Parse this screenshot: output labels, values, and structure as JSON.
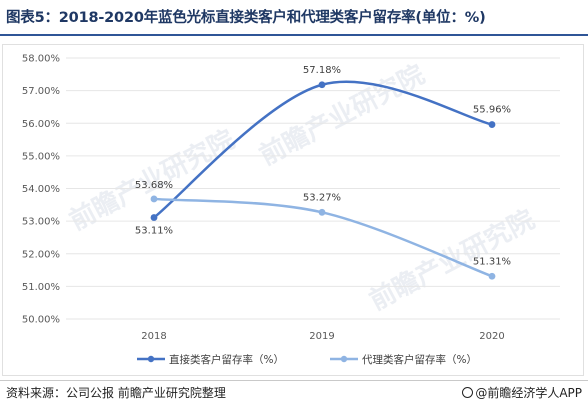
{
  "title": "图表5：2018-2020年蓝色光标直接类客户和代理类客户留存率(单位：%)",
  "chart_data": {
    "type": "line",
    "title": "图表5：2018-2020年蓝色光标直接类客户和代理类客户留存率(单位：%)",
    "xlabel": "",
    "ylabel": "",
    "categories": [
      "2018",
      "2019",
      "2020"
    ],
    "yticks": [
      "50.00%",
      "51.00%",
      "52.00%",
      "53.00%",
      "54.00%",
      "55.00%",
      "56.00%",
      "57.00%",
      "58.00%"
    ],
    "ylim": [
      50,
      58
    ],
    "smooth": true,
    "grid": true,
    "legend_position": "bottom",
    "series": [
      {
        "name": "直接类客户留存率（%）",
        "values": [
          53.11,
          57.18,
          55.96
        ],
        "labels": [
          "53.11%",
          "57.18%",
          "55.96%"
        ],
        "color": "#4472c4"
      },
      {
        "name": "代理类客户留存率（%）",
        "values": [
          53.68,
          53.27,
          51.31
        ],
        "labels": [
          "53.68%",
          "53.27%",
          "51.31%"
        ],
        "color": "#8fb4e3"
      }
    ]
  },
  "footer": {
    "source": "资料来源：公司公报 前瞻产业研究院整理",
    "brand": "@前瞻经济学人APP"
  },
  "watermark": "前瞻产业研究院"
}
